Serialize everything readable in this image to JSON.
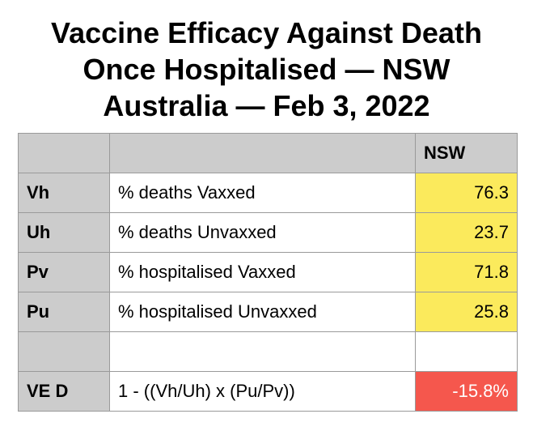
{
  "title": {
    "line1": "Vaccine Efficacy Against Death",
    "line2": "Once Hospitalised — NSW",
    "line3": "Australia — Feb 3, 2022"
  },
  "table": {
    "column_header": "NSW",
    "rows": [
      {
        "code": "Vh",
        "description": "% deaths Vaxxed",
        "value": "76.3"
      },
      {
        "code": "Uh",
        "description": "% deaths Unvaxxed",
        "value": "23.7"
      },
      {
        "code": "Pv",
        "description": "% hospitalised Vaxxed",
        "value": "71.8"
      },
      {
        "code": "Pu",
        "description": "% hospitalised Unvaxxed",
        "value": "25.8"
      }
    ],
    "result": {
      "code": "VE D",
      "formula": "1 - ((Vh/Uh) x (Pu/Pv))",
      "value": "-15.8%"
    }
  },
  "colors": {
    "header_gray": "#cccccc",
    "value_yellow": "#fbea5c",
    "result_red": "#f5574d"
  }
}
